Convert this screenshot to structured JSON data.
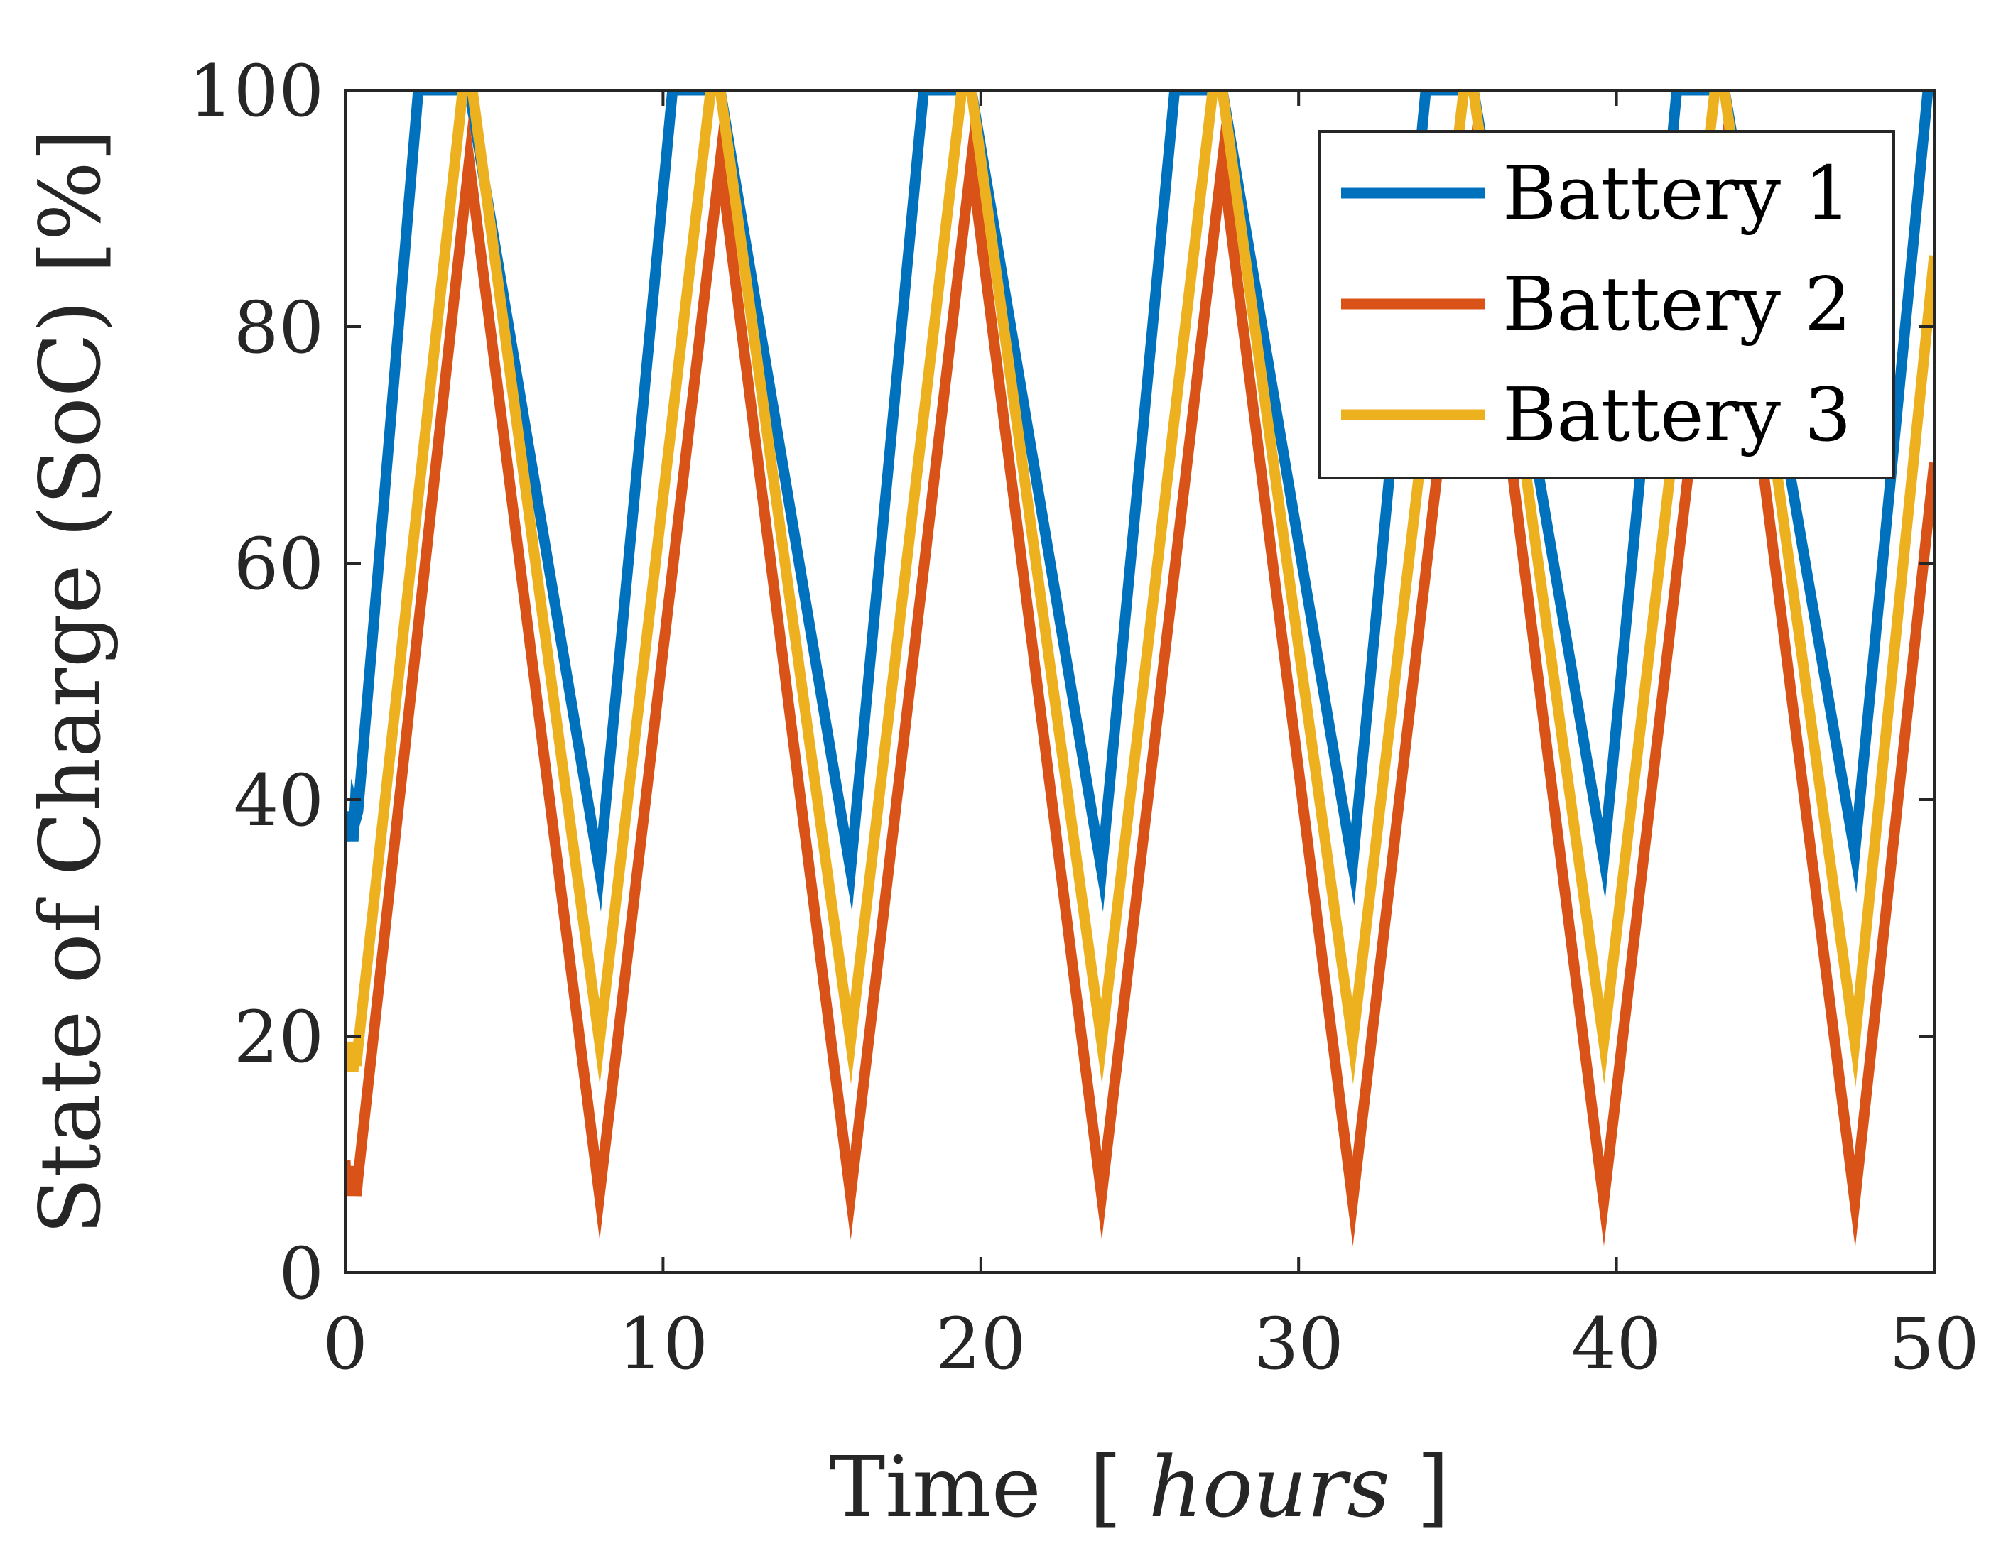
{
  "chart_data": {
    "type": "line",
    "title": "",
    "xlabel_main": "Time",
    "xlabel_bracket_open": "[",
    "xlabel_unit": "hours",
    "xlabel_bracket_close": "]",
    "ylabel": "State of Charge (SoC) [%]",
    "xlim": [
      0,
      50
    ],
    "ylim": [
      0,
      100
    ],
    "xticks": [
      0,
      10,
      20,
      30,
      40,
      50
    ],
    "yticks": [
      0,
      20,
      40,
      60,
      80,
      100
    ],
    "grid": false,
    "legend_position": "top-right",
    "series": [
      {
        "name": "Battery 1",
        "color": "#0072BD",
        "x": [
          0,
          0.05,
          0.1,
          0.15,
          0.2,
          0.25,
          0.3,
          0.35,
          0.4,
          2.3,
          3.9,
          8.0,
          10.3,
          11.8,
          15.9,
          18.2,
          19.7,
          23.8,
          26.1,
          27.6,
          31.7,
          34.0,
          35.5,
          39.6,
          41.9,
          43.4,
          47.5,
          49.8,
          50
        ],
        "y": [
          38,
          36.5,
          39,
          36.5,
          39,
          36.5,
          39,
          38.5,
          39,
          100,
          100,
          34,
          100,
          100,
          34,
          100,
          100,
          34,
          100,
          100,
          34.5,
          100,
          100,
          35,
          100,
          100,
          35.5,
          100,
          100
        ]
      },
      {
        "name": "Battery 2",
        "color": "#D95319",
        "x": [
          0,
          0.05,
          0.1,
          0.15,
          0.2,
          0.25,
          0.3,
          0.35,
          0.4,
          3.9,
          8.0,
          11.8,
          15.9,
          19.7,
          23.8,
          27.6,
          31.7,
          35.5,
          39.6,
          43.4,
          47.5,
          50
        ],
        "y": [
          9.5,
          6.5,
          9,
          6.5,
          9,
          6.5,
          9,
          6.5,
          8,
          94,
          6.5,
          94,
          6.5,
          94,
          6.5,
          94,
          6,
          94,
          6,
          94,
          6,
          68.5
        ]
      },
      {
        "name": "Battery 3",
        "color": "#EDB120",
        "x": [
          0,
          0.05,
          0.1,
          0.15,
          0.2,
          0.25,
          0.3,
          0.35,
          0.4,
          3.7,
          4.0,
          8.0,
          11.5,
          11.8,
          15.9,
          19.4,
          19.7,
          23.8,
          27.3,
          27.6,
          31.7,
          35.2,
          35.5,
          39.6,
          43.1,
          43.4,
          47.5,
          50
        ],
        "y": [
          19,
          17,
          19.5,
          17,
          19.5,
          17,
          19,
          17.5,
          19,
          100,
          100,
          19.5,
          100,
          100,
          19.5,
          100,
          100,
          19.5,
          100,
          100,
          19.5,
          100,
          100,
          19.5,
          100,
          100,
          19.5,
          86
        ]
      }
    ]
  }
}
